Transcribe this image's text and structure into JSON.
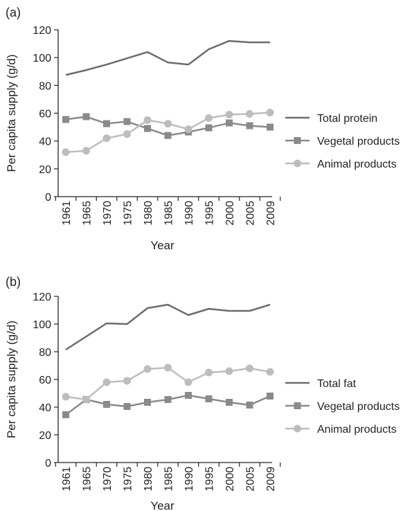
{
  "colors": {
    "axis": "#222222",
    "total": "#6b6b6b",
    "vegetal": "#8a8a8a",
    "animal": "#bdbdbd"
  },
  "chart_data": [
    {
      "type": "line",
      "panel_label": "(a)",
      "xlabel": "Year",
      "ylabel": "Per capita supply (g/d)",
      "categories": [
        "1961",
        "1965",
        "1970",
        "1975",
        "1980",
        "1985",
        "1990",
        "1995",
        "2000",
        "2005",
        "2009"
      ],
      "ylim": [
        0,
        120
      ],
      "yticks": [
        "0",
        "20",
        "40",
        "60",
        "80",
        "100",
        "120"
      ],
      "grid": false,
      "legend_position": "right",
      "series": [
        {
          "name": "Total protein",
          "marker": "none",
          "values": [
            87.5,
            91,
            95,
            99.5,
            104,
            96.5,
            95,
            106,
            112,
            111,
            111
          ]
        },
        {
          "name": "Vegetal products",
          "marker": "square",
          "values": [
            55.5,
            57.5,
            52.5,
            54,
            49,
            44,
            46.5,
            49.5,
            53,
            51,
            50
          ]
        },
        {
          "name": "Animal products",
          "marker": "circle",
          "values": [
            32,
            33,
            42,
            45,
            55,
            52.5,
            48.5,
            56.5,
            59,
            59.5,
            60.5
          ]
        }
      ]
    },
    {
      "type": "line",
      "panel_label": "(b)",
      "xlabel": "Year",
      "ylabel": "Per capita supply (g/d)",
      "categories": [
        "1961",
        "1965",
        "1970",
        "1975",
        "1980",
        "1985",
        "1990",
        "1995",
        "2000",
        "2005",
        "2009"
      ],
      "ylim": [
        0,
        120
      ],
      "yticks": [
        "0",
        "20",
        "40",
        "60",
        "80",
        "100",
        "120"
      ],
      "grid": false,
      "legend_position": "right",
      "series": [
        {
          "name": "Total fat",
          "marker": "none",
          "values": [
            81.5,
            91,
            100.5,
            100,
            111.5,
            114,
            106.5,
            111,
            109.5,
            109.5,
            114
          ]
        },
        {
          "name": "Vegetal products",
          "marker": "square",
          "values": [
            34.5,
            45.5,
            42,
            40.5,
            43.5,
            45.5,
            48.5,
            46,
            43.5,
            41.5,
            48
          ]
        },
        {
          "name": "Animal products",
          "marker": "circle",
          "values": [
            47.5,
            45.5,
            58,
            59,
            67.5,
            68.5,
            58,
            65,
            66,
            68,
            65.5
          ]
        }
      ]
    }
  ]
}
